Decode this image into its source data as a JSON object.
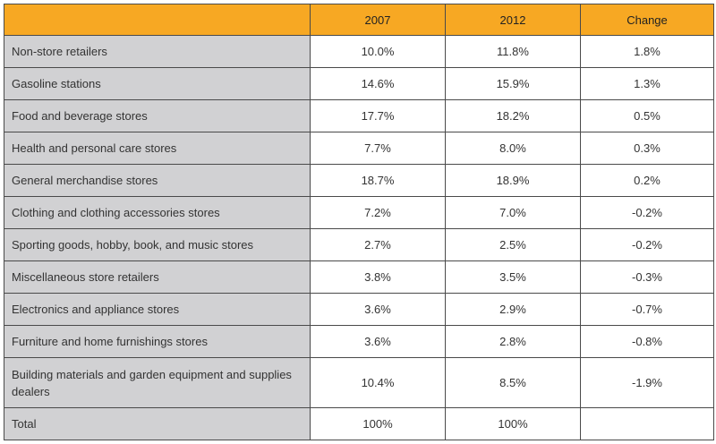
{
  "table": {
    "headers": [
      "",
      "2007",
      "2012",
      "Change"
    ],
    "rows": [
      {
        "label": "Non-store retailers",
        "y2007": "10.0%",
        "y2012": "11.8%",
        "change": "1.8%"
      },
      {
        "label": "Gasoline stations",
        "y2007": "14.6%",
        "y2012": "15.9%",
        "change": "1.3%"
      },
      {
        "label": "Food and beverage stores",
        "y2007": "17.7%",
        "y2012": "18.2%",
        "change": "0.5%"
      },
      {
        "label": "Health and personal care stores",
        "y2007": "7.7%",
        "y2012": "8.0%",
        "change": "0.3%"
      },
      {
        "label": "General merchandise stores",
        "y2007": "18.7%",
        "y2012": "18.9%",
        "change": "0.2%"
      },
      {
        "label": "Clothing and clothing accessories stores",
        "y2007": "7.2%",
        "y2012": "7.0%",
        "change": "-0.2%"
      },
      {
        "label": "Sporting goods, hobby, book, and music stores",
        "y2007": "2.7%",
        "y2012": "2.5%",
        "change": "-0.2%"
      },
      {
        "label": "Miscellaneous store retailers",
        "y2007": "3.8%",
        "y2012": "3.5%",
        "change": "-0.3%"
      },
      {
        "label": "Electronics and appliance stores",
        "y2007": "3.6%",
        "y2012": "2.9%",
        "change": "-0.7%"
      },
      {
        "label": "Furniture and home furnishings stores",
        "y2007": "3.6%",
        "y2012": "2.8%",
        "change": "-0.8%"
      },
      {
        "label": "Building materials and garden equipment and supplies dealers",
        "y2007": "10.4%",
        "y2012": "8.5%",
        "change": "-1.9%"
      },
      {
        "label": "Total",
        "y2007": "100%",
        "y2012": "100%",
        "change": ""
      }
    ]
  },
  "colors": {
    "header_background": "#f7a823",
    "label_column_background": "#d1d1d3",
    "border": "#4a4a4a"
  }
}
